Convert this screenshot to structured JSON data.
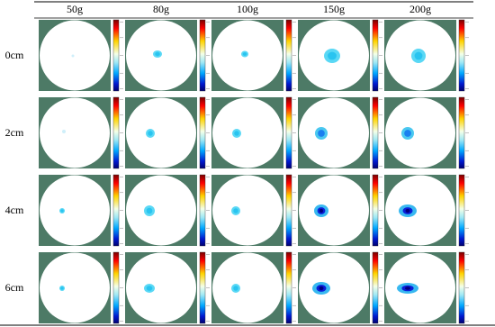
{
  "header": {
    "columns": [
      "50g",
      "80g",
      "100g",
      "150g",
      "200g"
    ]
  },
  "rows": [
    "0cm",
    "2cm",
    "4cm",
    "6cm"
  ]
}
